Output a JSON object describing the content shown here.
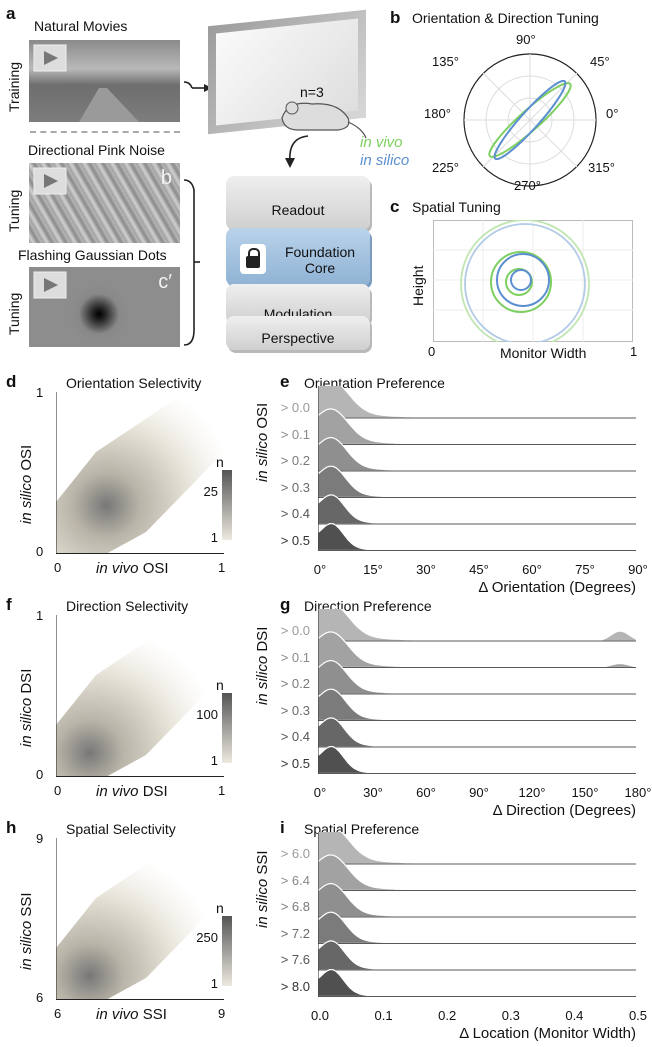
{
  "panel_a": {
    "label": "a",
    "stimuli": [
      {
        "title": "Natural Movies",
        "side": "Training",
        "corner": ""
      },
      {
        "title": "Directional Pink Noise",
        "side": "Tuning",
        "corner": "b"
      },
      {
        "title": "Flashing Gaussian Dots",
        "side": "Tuning",
        "corner": "c′"
      }
    ],
    "mouse_label": "n=3",
    "invivo": "in vivo",
    "insilico": "in silico",
    "model_layers": [
      "Readout",
      "Foundation\nCore",
      "Modulation",
      "Perspective"
    ]
  },
  "panel_b": {
    "label": "b",
    "title": "Orientation & Direction Tuning",
    "angles": [
      "90°",
      "45°",
      "0°",
      "315°",
      "270°",
      "225°",
      "180°",
      "135°"
    ],
    "colors": {
      "invivo": "#7dcf5f",
      "insilico": "#5b8fd0"
    }
  },
  "panel_c": {
    "label": "c",
    "title": "Spatial Tuning",
    "xlabel": "Monitor Width",
    "ylabel": "Height",
    "x0": "0",
    "x1": "1"
  },
  "scatters": [
    {
      "label": "d",
      "title": "Orientation Selectivity",
      "xlabel_it": "in vivo",
      "xlabel": " OSI",
      "ylabel_it": "in silico",
      "ylabel": " OSI",
      "xmin": "0",
      "xmax": "1",
      "ymin": "0",
      "ymax": "1",
      "cbar_title": "n",
      "cbar_max": "25",
      "cbar_min": "1"
    },
    {
      "label": "f",
      "title": "Direction Selectivity",
      "xlabel_it": "in vivo",
      "xlabel": " DSI",
      "ylabel_it": "in silico",
      "ylabel": " DSI",
      "xmin": "0",
      "xmax": "1",
      "ymin": "0",
      "ymax": "1",
      "cbar_title": "n",
      "cbar_max": "100",
      "cbar_min": "1"
    },
    {
      "label": "h",
      "title": "Spatial Selectivity",
      "xlabel_it": "in vivo",
      "xlabel": " SSI",
      "ylabel_it": "in silico",
      "ylabel": " SSI",
      "xmin": "6",
      "xmax": "9",
      "ymin": "6",
      "ymax": "9",
      "cbar_title": "n",
      "cbar_max": "250",
      "cbar_min": "1"
    }
  ],
  "ridges": [
    {
      "label": "e",
      "title": "Orientation Preference",
      "ylabel_it": "in silico",
      "ylabel": " OSI",
      "rows": [
        "> 0.0",
        "> 0.1",
        "> 0.2",
        "> 0.3",
        "> 0.4",
        "> 0.5"
      ],
      "xticks": [
        "0°",
        "15°",
        "30°",
        "45°",
        "60°",
        "75°",
        "90°"
      ],
      "xlabel": "Δ Orientation (Degrees)"
    },
    {
      "label": "g",
      "title": "Direction Preference",
      "ylabel_it": "in silico",
      "ylabel": " DSI",
      "rows": [
        "> 0.0",
        "> 0.1",
        "> 0.2",
        "> 0.3",
        "> 0.4",
        "> 0.5"
      ],
      "xticks": [
        "0°",
        "30°",
        "60°",
        "90°",
        "120°",
        "150°",
        "180°"
      ],
      "xlabel": "Δ Direction (Degrees)"
    },
    {
      "label": "i",
      "title": "Spatial Preference",
      "ylabel_it": "in silico",
      "ylabel": " SSI",
      "rows": [
        "> 6.0",
        "> 6.4",
        "> 6.8",
        "> 7.2",
        "> 7.6",
        "> 8.0"
      ],
      "xticks": [
        "0.0",
        "0.1",
        "0.2",
        "0.3",
        "0.4",
        "0.5"
      ],
      "xlabel": "Δ Location (Monitor Width)"
    }
  ]
}
